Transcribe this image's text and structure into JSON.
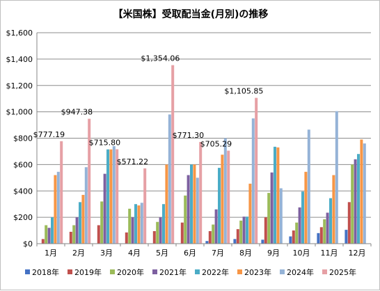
{
  "chart_data": {
    "type": "bar",
    "title": "【米国株】受取配当金(月別)の推移",
    "xlabel": "",
    "ylabel": "",
    "ylim": [
      0,
      1600
    ],
    "yticks": [
      0,
      200,
      400,
      600,
      800,
      1000,
      1200,
      1400,
      1600
    ],
    "ytick_labels": [
      "$0",
      "$200",
      "$400",
      "$600",
      "$800",
      "$1,000",
      "$1,200",
      "$1,400",
      "$1,600"
    ],
    "grid": true,
    "legend_position": "bottom",
    "categories": [
      "1月",
      "2月",
      "3月",
      "4月",
      "5月",
      "6月",
      "7月",
      "8月",
      "9月",
      "10月",
      "11月",
      "12月"
    ],
    "series": [
      {
        "name": "2018年",
        "color": "#4472c4",
        "values": [
          0,
          0,
          0,
          0,
          0,
          0,
          20,
          35,
          30,
          55,
          80,
          105
        ]
      },
      {
        "name": "2019年",
        "color": "#c0504d",
        "values": [
          35,
          90,
          140,
          85,
          95,
          160,
          95,
          110,
          200,
          100,
          125,
          315
        ]
      },
      {
        "name": "2020年",
        "color": "#9bbb59",
        "values": [
          140,
          140,
          320,
          265,
          165,
          365,
          145,
          175,
          385,
          160,
          185,
          600
        ]
      },
      {
        "name": "2021年",
        "color": "#7d60a0",
        "values": [
          120,
          200,
          530,
          200,
          200,
          520,
          260,
          205,
          540,
          275,
          235,
          640
        ]
      },
      {
        "name": "2022年",
        "color": "#4bacc6",
        "values": [
          200,
          315,
          715,
          300,
          300,
          600,
          575,
          205,
          735,
          395,
          345,
          680
        ]
      },
      {
        "name": "2023年",
        "color": "#f79646",
        "values": [
          520,
          370,
          715,
          290,
          600,
          600,
          675,
          455,
          730,
          545,
          520,
          790
        ]
      },
      {
        "name": "2024年",
        "color": "#95b3d7",
        "values": [
          545,
          580,
          740,
          310,
          980,
          500,
          800,
          950,
          420,
          865,
          1005,
          760
        ]
      },
      {
        "name": "2025年",
        "color": "#e6a0a5",
        "values": [
          777.19,
          947.38,
          715.8,
          571.22,
          1354.06,
          771.3,
          705.29,
          1105.85,
          null,
          null,
          null,
          null
        ]
      }
    ],
    "data_labels": [
      "$777.19",
      "$947.38",
      "$715.80",
      "$571.22",
      "$1,354.06",
      "$771.30",
      "$705.29",
      "$1,105.85"
    ]
  }
}
